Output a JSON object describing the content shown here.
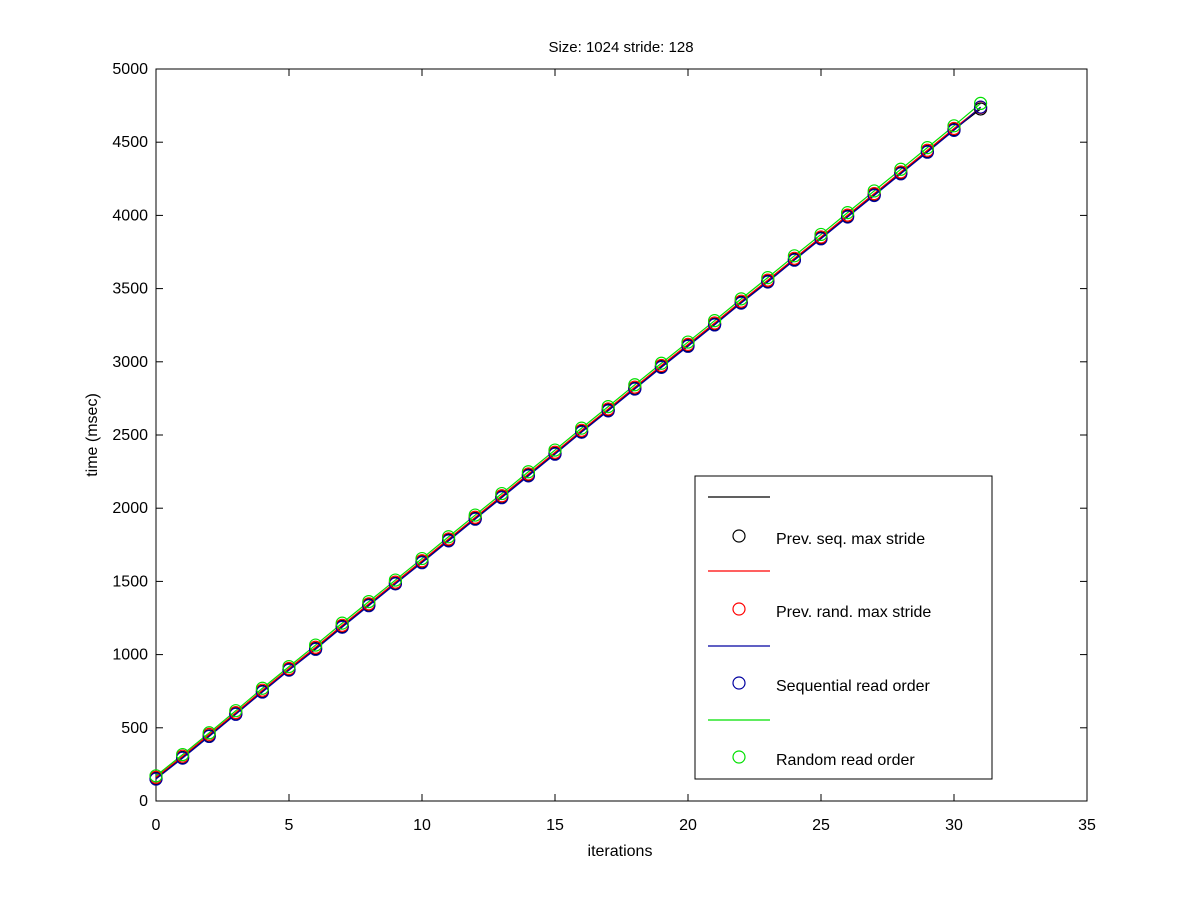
{
  "chart_data": {
    "type": "line",
    "title": "Size: 1024 stride: 128",
    "xlabel": "iterations",
    "ylabel": "time (msec)",
    "xlim": [
      0,
      35
    ],
    "ylim": [
      0,
      5000
    ],
    "xticks": [
      0,
      5,
      10,
      15,
      20,
      25,
      30,
      35
    ],
    "yticks": [
      0,
      500,
      1000,
      1500,
      2000,
      2500,
      3000,
      3500,
      4000,
      4500,
      5000
    ],
    "grid": false,
    "legend_placement": "lower-right",
    "x": [
      0,
      1,
      2,
      3,
      4,
      5,
      6,
      7,
      8,
      9,
      10,
      11,
      12,
      13,
      14,
      15,
      16,
      17,
      18,
      19,
      20,
      21,
      22,
      23,
      24,
      25,
      26,
      27,
      28,
      29,
      30,
      31
    ],
    "series": [
      {
        "name": "Prev. seq. max stride",
        "color": "#000000",
        "marker": "circle",
        "values": [
          155,
          297,
          445,
          596,
          748,
          898,
          1041,
          1192,
          1339,
          1487,
          1633,
          1782,
          1930,
          2077,
          2226,
          2374,
          2524,
          2670,
          2819,
          2967,
          3111,
          3257,
          3406,
          3550,
          3699,
          3845,
          3994,
          4141,
          4289,
          4437,
          4586,
          4727
        ]
      },
      {
        "name": "Prev. rand. max stride",
        "color": "#ff0000",
        "marker": "circle",
        "values": [
          162,
          306,
          455,
          604,
          757,
          905,
          1050,
          1200,
          1347,
          1495,
          1641,
          1790,
          1938,
          2085,
          2234,
          2382,
          2532,
          2678,
          2827,
          2975,
          3119,
          3265,
          3414,
          3558,
          3707,
          3853,
          4002,
          4149,
          4297,
          4445,
          4594,
          4738
        ]
      },
      {
        "name": "Sequential read order",
        "color": "#0000a0",
        "marker": "circle",
        "values": [
          150,
          293,
          441,
          592,
          744,
          894,
          1036,
          1187,
          1334,
          1483,
          1628,
          1777,
          1925,
          2072,
          2221,
          2369,
          2519,
          2665,
          2814,
          2962,
          3106,
          3252,
          3401,
          3545,
          3694,
          3840,
          3989,
          4136,
          4284,
          4432,
          4581,
          4740
        ]
      },
      {
        "name": "Random read order",
        "color": "#00e000",
        "marker": "circle",
        "values": [
          172,
          317,
          466,
          617,
          770,
          918,
          1065,
          1215,
          1362,
          1509,
          1656,
          1805,
          1953,
          2100,
          2249,
          2397,
          2547,
          2694,
          2843,
          2990,
          3135,
          3281,
          3430,
          3575,
          3724,
          3870,
          4019,
          4167,
          4315,
          4463,
          4612,
          4765
        ]
      }
    ]
  }
}
